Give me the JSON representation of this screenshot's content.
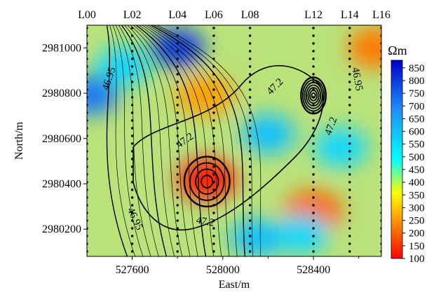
{
  "chart_data": {
    "type": "heatmap",
    "xlabel": "East/m",
    "ylabel": "North/m",
    "xlim": [
      527400,
      528700
    ],
    "ylim": [
      2980080,
      2981100
    ],
    "x_ticks": [
      527600,
      528000,
      528400
    ],
    "x_tick_labels": [
      "527600",
      "528000",
      "528400"
    ],
    "x_minor_ticks": [
      527800,
      528200,
      528600
    ],
    "y_ticks": [
      2980200,
      2980400,
      2980600,
      2980800,
      2981000
    ],
    "y_tick_labels": [
      "2980200",
      "2980400",
      "2980600",
      "2980800",
      "2981000"
    ],
    "survey_lines": [
      {
        "label": "L00",
        "x": 527400
      },
      {
        "label": "L02",
        "x": 527600
      },
      {
        "label": "L04",
        "x": 527800
      },
      {
        "label": "L06",
        "x": 527960
      },
      {
        "label": "L08",
        "x": 528120
      },
      {
        "label": "L12",
        "x": 528400
      },
      {
        "label": "L14",
        "x": 528560
      },
      {
        "label": "L16",
        "x": 528700
      }
    ],
    "colorbar": {
      "unit": "Ωm",
      "min": 100,
      "max": 880,
      "ticks": [
        100,
        150,
        200,
        250,
        300,
        350,
        400,
        450,
        500,
        550,
        600,
        650,
        700,
        750,
        800,
        850
      ],
      "tick_labels": [
        "100",
        "150",
        "200",
        "250",
        "300",
        "350",
        "400",
        "450",
        "500",
        "550",
        "600",
        "650",
        "700",
        "750",
        "800",
        "850"
      ]
    },
    "contour_labels": [
      {
        "text": "46.95",
        "x": 527510,
        "y": 2980860,
        "angle": -72
      },
      {
        "text": "47.2",
        "x": 528240,
        "y": 2980820,
        "angle": -45
      },
      {
        "text": "46.95",
        "x": 528580,
        "y": 2980860,
        "angle": 80
      },
      {
        "text": "47.2",
        "x": 527840,
        "y": 2980580,
        "angle": -35
      },
      {
        "text": "47.2",
        "x": 528490,
        "y": 2980650,
        "angle": -70
      },
      {
        "text": "46.95",
        "x": 527600,
        "y": 2980240,
        "angle": 65
      },
      {
        "text": "47.2",
        "x": 527920,
        "y": 2980220,
        "angle": 10
      }
    ],
    "anomalies": [
      {
        "kind": "low",
        "x": 527930,
        "y": 2980420,
        "value": 120
      },
      {
        "kind": "low",
        "x": 527920,
        "y": 2980790,
        "value": 260
      },
      {
        "kind": "low",
        "x": 528400,
        "y": 2980280,
        "value": 200
      },
      {
        "kind": "low",
        "x": 528680,
        "y": 2981000,
        "value": 220
      },
      {
        "kind": "high",
        "x": 527560,
        "y": 2980920,
        "value": 560
      },
      {
        "kind": "high",
        "x": 527800,
        "y": 2981000,
        "value": 800
      },
      {
        "kind": "high",
        "x": 527420,
        "y": 2980790,
        "value": 720
      },
      {
        "kind": "high",
        "x": 528520,
        "y": 2980560,
        "value": 560
      },
      {
        "kind": "high",
        "x": 528200,
        "y": 2980620,
        "value": 600
      },
      {
        "kind": "high",
        "x": 528350,
        "y": 2980180,
        "value": 560
      },
      {
        "kind": "high",
        "x": 528150,
        "y": 2980160,
        "value": 600
      }
    ],
    "closed_contours": [
      {
        "name": "ring-west",
        "cx": 527930,
        "cy": 2980410,
        "rx": 100,
        "ry": 110
      },
      {
        "name": "ring-east",
        "cx": 528400,
        "cy": 2980790,
        "rx": 55,
        "ry": 80
      }
    ]
  }
}
